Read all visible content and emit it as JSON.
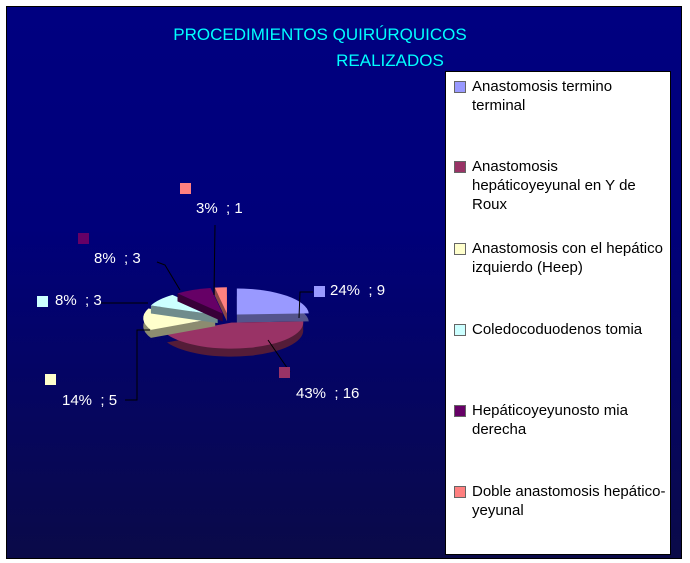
{
  "chart_data": {
    "type": "pie",
    "title": "PROCEDIMIENTOS QUIRÚRQUICOS REALIZADOS",
    "title_lines": [
      "PROCEDIMIENTOS QUIRÚRQUICOS",
      "REALIZADOS"
    ],
    "legend_position": "right",
    "slices": [
      {
        "name": "Anastomosis termino terminal",
        "value": 9,
        "percent": 24,
        "label": "24%  ; 9",
        "color": "#9999ff"
      },
      {
        "name": "Anastomosis hepáticoyeyunal en Y de Roux",
        "value": 16,
        "percent": 43,
        "label": "43%  ; 16",
        "color": "#993366"
      },
      {
        "name": "Anastomosis con el hepático izquierdo (Heep)",
        "value": 5,
        "percent": 14,
        "label": "14%  ; 5",
        "color": "#ffffcc"
      },
      {
        "name": "Coledocoduodenos tomia",
        "value": 3,
        "percent": 8,
        "label": "8%  ; 3",
        "color": "#ccffff"
      },
      {
        "name": "Hepáticoyeyunosto mia derecha",
        "value": 3,
        "percent": 8,
        "label": "8%  ; 3",
        "color": "#660066"
      },
      {
        "name": "Doble anastomosis hepático-yeyunal",
        "value": 1,
        "percent": 3,
        "label": "3%  ; 1",
        "color": "#ff8080"
      }
    ]
  }
}
